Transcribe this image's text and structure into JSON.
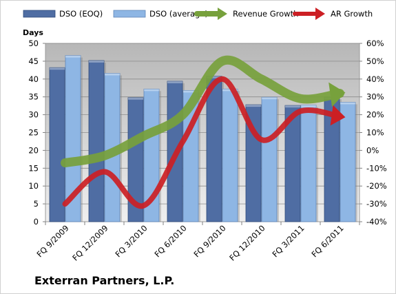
{
  "company_name": "Exterran Partners, L.P.",
  "chart_data": {
    "type": "bar",
    "categories": [
      "FQ 9/2009",
      "FQ 12/2009",
      "FQ 3/2010",
      "FQ 6/2010",
      "FQ 9/2010",
      "FQ 12/2010",
      "FQ 3/2011",
      "FQ 6/2011"
    ],
    "ylabel": "Days",
    "ylim": [
      0,
      50
    ],
    "yticks": [
      0,
      5,
      10,
      15,
      20,
      25,
      30,
      35,
      40,
      45,
      50
    ],
    "y2lim": [
      -40,
      60
    ],
    "y2ticks": [
      "-40%",
      "-30%",
      "-20%",
      "-10%",
      "0%",
      "10%",
      "20%",
      "30%",
      "40%",
      "50%",
      "60%"
    ],
    "legend_position": "top",
    "bar_series": [
      {
        "name": "DSO (EOQ)",
        "values": [
          43.2,
          45.2,
          34.8,
          39.4,
          40.8,
          32.8,
          32.6,
          34.9
        ],
        "color": "#4f6da3"
      },
      {
        "name": "DSO (average)",
        "values": [
          46.6,
          41.6,
          37.2,
          36.8,
          37.2,
          34.9,
          32.7,
          33.5
        ],
        "color": "#8eb6e4"
      }
    ],
    "line_series": [
      {
        "name": "Revenue Growth",
        "values": [
          -7,
          -3,
          8,
          20,
          50,
          40,
          29,
          32
        ],
        "unit": "%",
        "color": "#77a13c"
      },
      {
        "name": "AR Growth",
        "values": [
          -30,
          -12,
          -31,
          5,
          40,
          6,
          22,
          19
        ],
        "unit": "%",
        "color": "#cc1f24"
      }
    ]
  }
}
